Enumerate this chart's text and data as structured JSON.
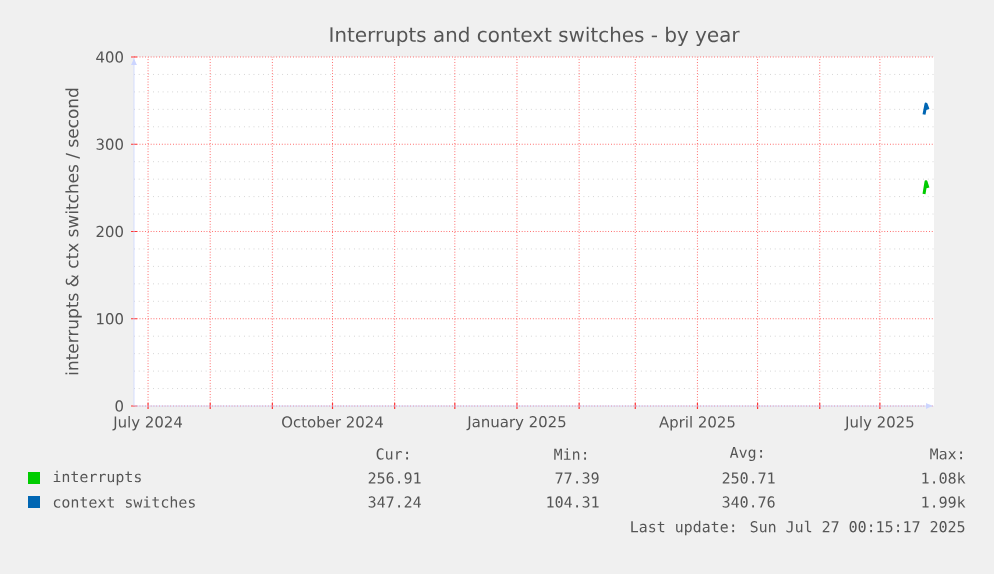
{
  "chart_data": {
    "type": "line",
    "title": "Interrupts and context switches - by year",
    "ylabel": "interrupts & ctx switches / second",
    "x": [
      "2025-07-23",
      "2025-07-24",
      "2025-07-25"
    ],
    "series": [
      {
        "name": "interrupts",
        "color": "#00cc00",
        "values": [
          243,
          257,
          250
        ]
      },
      {
        "name": "context switches",
        "color": "#0066b3",
        "values": [
          334,
          346,
          340
        ]
      }
    ],
    "xlim": [
      "2024-06-24",
      "2025-07-28"
    ],
    "xticks": [
      {
        "value": "2024-07-01",
        "label": "July 2024"
      },
      {
        "value": "2024-08-01",
        "label": null
      },
      {
        "value": "2024-09-01",
        "label": null
      },
      {
        "value": "2024-10-01",
        "label": "October 2024"
      },
      {
        "value": "2024-11-01",
        "label": null
      },
      {
        "value": "2024-12-01",
        "label": null
      },
      {
        "value": "2025-01-01",
        "label": "January 2025"
      },
      {
        "value": "2025-02-01",
        "label": null
      },
      {
        "value": "2025-03-01",
        "label": null
      },
      {
        "value": "2025-04-01",
        "label": "April 2025"
      },
      {
        "value": "2025-05-01",
        "label": null
      },
      {
        "value": "2025-06-01",
        "label": null
      },
      {
        "value": "2025-07-01",
        "label": "July 2025"
      }
    ],
    "ylim": [
      0,
      400
    ],
    "yticks": [
      0,
      100,
      200,
      300,
      400
    ],
    "grid": true,
    "legend": "bottom",
    "line_style": "solid",
    "annotations": [
      "Cur:",
      "Min:",
      "Avg:",
      "Max:",
      "256.91",
      "77.39",
      "250.71",
      "1.08k",
      "347.24",
      "104.31",
      "340.76",
      "1.99k",
      "Last update: Sun Jul 27 00:15:17 2025"
    ]
  }
}
